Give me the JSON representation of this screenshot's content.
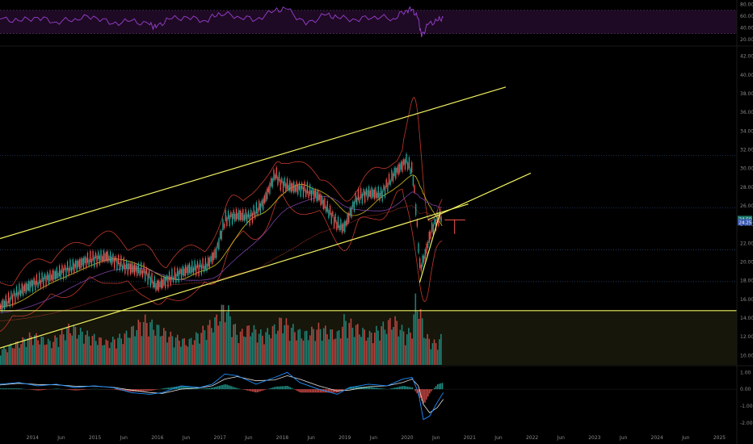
{
  "colors": {
    "background": "#000000",
    "rsi_panel_fill": "#1e0a24",
    "rsi_line": "#9b3fd0",
    "channel_line": "#f0f060",
    "support_zone": "#16160a",
    "up_candle": "#26a69a",
    "down_candle": "#ef5350",
    "bollinger": "#c0392b",
    "ma_yellow": "#d4c020",
    "ma_purple": "#7b3fa0",
    "macd_line": "#1e90ff",
    "signal_line": "#e0e0e0",
    "dotted_level": "#2a4a7a",
    "last_price_tag": "#1e7a6e",
    "ma_tag": "#3a5ab0"
  },
  "chart_data": [
    {
      "type": "line",
      "panel": "rsi",
      "yticks": [
        "80.00",
        "60.00",
        "40.00",
        "20.00"
      ],
      "ylim": [
        10,
        85
      ],
      "bands": [
        30,
        70
      ],
      "series": [
        {
          "x": [
            2013.2,
            2013.5,
            2013.8,
            2014.1,
            2014.4,
            2014.7,
            2015.0,
            2015.3,
            2015.6,
            2015.9,
            2016.0,
            2016.2,
            2016.5,
            2016.8,
            2017.0,
            2017.3,
            2017.6,
            2017.9,
            2018.1,
            2018.4,
            2018.7,
            2018.9,
            2019.2,
            2019.5,
            2019.8,
            2020.0,
            2020.1,
            2020.2,
            2020.25,
            2020.35,
            2020.5,
            2020.6
          ],
          "values": [
            48,
            55,
            52,
            58,
            50,
            56,
            60,
            47,
            52,
            45,
            40,
            55,
            58,
            52,
            66,
            60,
            54,
            70,
            72,
            45,
            62,
            58,
            54,
            60,
            56,
            70,
            72,
            55,
            24,
            45,
            52,
            58
          ]
        }
      ]
    },
    {
      "type": "candlestick",
      "panel": "price",
      "x_ticks": [
        "2014",
        "Jun",
        "2015",
        "Jun",
        "2016",
        "Jun",
        "2017",
        "Jun",
        "2018",
        "Jun",
        "2019",
        "Jun",
        "2020",
        "Jun",
        "2021",
        "Jun",
        "2022",
        "Jun",
        "2023",
        "Jun",
        "2024",
        "Jun",
        "2025"
      ],
      "xlim": [
        2013.5,
        2025.3
      ],
      "yticks": [
        "42.00",
        "40.00",
        "38.00",
        "36.00",
        "34.00",
        "32.00",
        "30.00",
        "28.00",
        "26.00",
        "24.00",
        "22.00",
        "20.00",
        "18.00",
        "16.00",
        "14.00",
        "12.00",
        "10.00"
      ],
      "ylim": [
        9,
        43
      ],
      "last_price_label": "24.59",
      "ma_label": "24.25",
      "x": [
        2013.5,
        2013.8,
        2014.0,
        2014.3,
        2014.6,
        2014.9,
        2015.2,
        2015.5,
        2015.8,
        2016.0,
        2016.2,
        2016.5,
        2016.8,
        2016.95,
        2017.1,
        2017.3,
        2017.5,
        2017.7,
        2017.9,
        2018.0,
        2018.15,
        2018.35,
        2018.6,
        2018.9,
        2019.0,
        2019.2,
        2019.4,
        2019.6,
        2019.8,
        2020.0,
        2020.1,
        2020.15,
        2020.22,
        2020.3,
        2020.4,
        2020.5,
        2020.58
      ],
      "close": [
        15.2,
        16.8,
        17.6,
        18.4,
        19.3,
        20.2,
        20.6,
        19.5,
        19.0,
        17.4,
        18.2,
        19.2,
        19.6,
        21.0,
        24.6,
        25.0,
        24.8,
        26.2,
        29.4,
        28.4,
        28.0,
        27.8,
        27.0,
        24.0,
        23.6,
        26.8,
        27.4,
        27.2,
        29.4,
        30.8,
        29.6,
        26.0,
        19.2,
        20.8,
        23.4,
        24.6,
        25.0
      ],
      "bollinger_upper_peak": 36.2,
      "bollinger_lower_trough": 17.1,
      "channel_upper": {
        "x": [
          2013.5,
          2021.6
        ],
        "y": [
          22.5,
          38.7
        ]
      },
      "channel_lower": {
        "x": [
          2013.5,
          2021.0
        ],
        "y": [
          10.8,
          26.2
        ]
      },
      "inner_line": {
        "x": [
          2020.35,
          2022.0
        ],
        "y": [
          24.5,
          29.5
        ]
      },
      "wedge_line": {
        "x": [
          2020.22,
          2020.55
        ],
        "y": [
          17.8,
          25.3
        ]
      },
      "horizontal_line": 14.8,
      "dotted_levels": [
        31.4,
        25.8,
        21.3,
        17.9
      ],
      "volume": [
        2,
        3,
        4,
        3,
        5,
        4,
        3,
        4,
        6,
        5,
        4,
        3,
        5,
        6,
        8,
        4,
        5,
        4,
        5,
        6,
        5,
        4,
        5,
        4,
        6,
        5,
        4,
        5,
        6,
        4,
        5,
        9,
        7,
        4,
        3,
        3,
        4
      ]
    },
    {
      "type": "histogram",
      "panel": "macd",
      "yticks": [
        "1.00",
        "0.00",
        "-1.00",
        "-2.00"
      ],
      "ylim": [
        -2.2,
        1.3
      ],
      "x": [
        2013.5,
        2013.8,
        2014.1,
        2014.4,
        2014.7,
        2015.0,
        2015.3,
        2015.6,
        2015.9,
        2016.1,
        2016.4,
        2016.7,
        2016.9,
        2017.1,
        2017.3,
        2017.6,
        2017.9,
        2018.1,
        2018.3,
        2018.6,
        2018.9,
        2019.1,
        2019.4,
        2019.7,
        2019.95,
        2020.1,
        2020.2,
        2020.28,
        2020.38,
        2020.5,
        2020.6
      ],
      "macd": [
        0.3,
        0.4,
        0.2,
        0.3,
        0.1,
        0.2,
        0.1,
        -0.2,
        -0.3,
        -0.2,
        0.2,
        0.1,
        0.3,
        0.9,
        0.8,
        0.3,
        0.7,
        1.0,
        0.4,
        0.0,
        -0.3,
        0.1,
        0.3,
        0.2,
        0.6,
        0.7,
        -0.2,
        -1.8,
        -1.6,
        -0.8,
        -0.2
      ],
      "signal": [
        0.25,
        0.35,
        0.28,
        0.26,
        0.18,
        0.18,
        0.12,
        -0.05,
        -0.2,
        -0.25,
        0.0,
        0.08,
        0.2,
        0.6,
        0.75,
        0.5,
        0.55,
        0.8,
        0.6,
        0.2,
        -0.1,
        -0.05,
        0.15,
        0.2,
        0.4,
        0.6,
        0.2,
        -0.9,
        -1.4,
        -1.1,
        -0.6
      ],
      "histogram": [
        0.05,
        0.05,
        -0.08,
        0.04,
        -0.08,
        0.02,
        -0.02,
        -0.15,
        -0.1,
        0.05,
        0.2,
        0.02,
        0.1,
        0.3,
        0.05,
        -0.2,
        0.15,
        0.2,
        -0.2,
        -0.2,
        -0.2,
        0.15,
        0.15,
        0.0,
        0.2,
        0.1,
        -0.4,
        -0.9,
        -0.2,
        0.3,
        0.4
      ]
    }
  ]
}
